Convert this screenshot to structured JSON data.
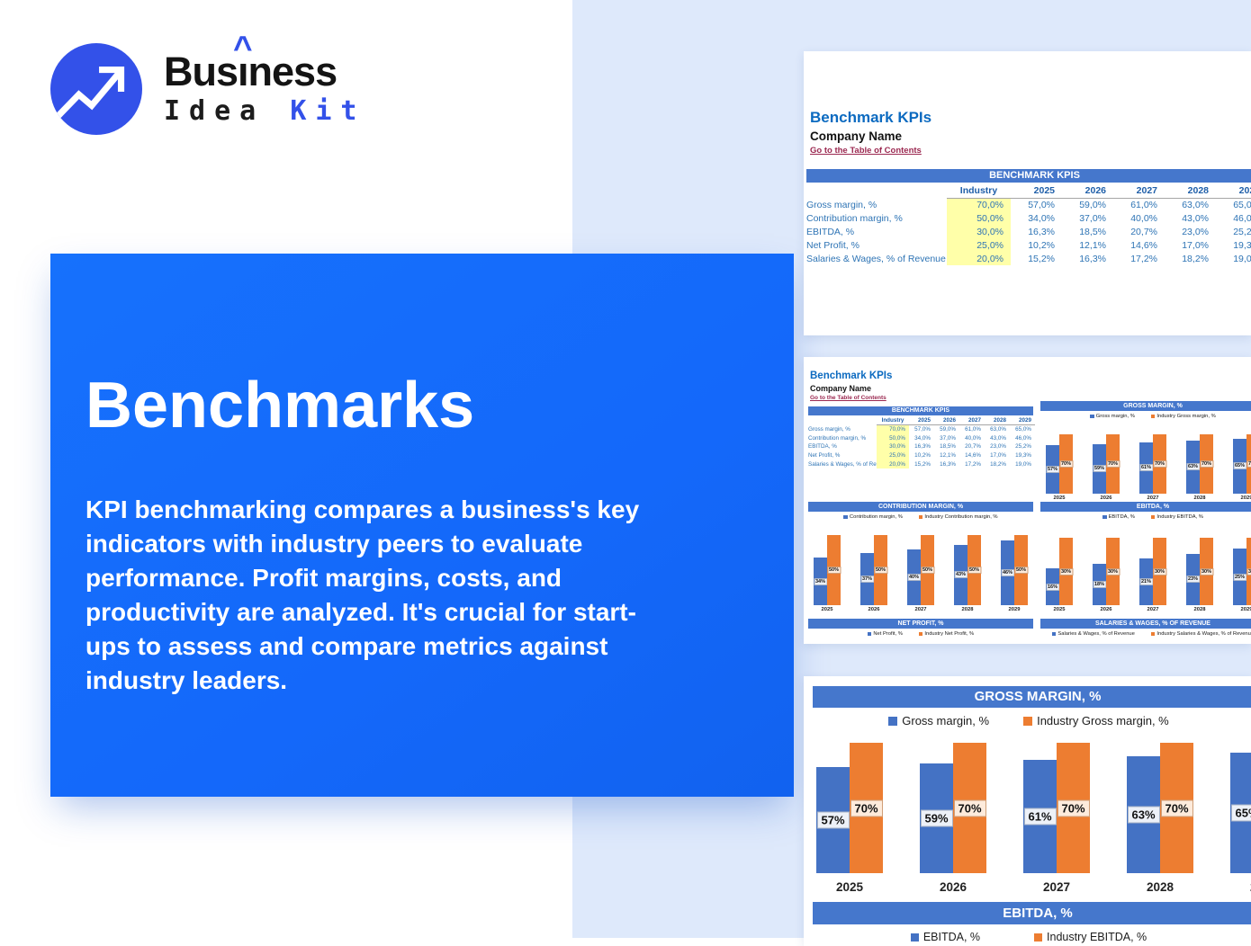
{
  "logo": {
    "line1_pre": "Bus",
    "line1_i": "ı",
    "line1_caret": "^",
    "line1_post": "ness",
    "line2_word1": "Idea",
    "line2_word2": "Kit"
  },
  "hero": {
    "title": "Benchmarks",
    "description": "KPI benchmarking compares a business's key indicators with industry peers to evaluate performance. Profit margins, costs, and productivity are analyzed. It's crucial for start-ups to assess and compare metrics against industry leaders."
  },
  "sheet": {
    "title": "Benchmark KPIs",
    "company": "Company Name",
    "toc_link": "Go to the Table of Contents",
    "table": {
      "title": "BENCHMARK KPIS",
      "industry_col": "Industry",
      "years": [
        "2025",
        "2026",
        "2027",
        "2028",
        "2029"
      ],
      "rows": [
        {
          "label": "Gross margin, %",
          "industry": "70,0%",
          "values": [
            "57,0%",
            "59,0%",
            "61,0%",
            "63,0%",
            "65,0%"
          ]
        },
        {
          "label": "Contribution margin, %",
          "industry": "50,0%",
          "values": [
            "34,0%",
            "37,0%",
            "40,0%",
            "43,0%",
            "46,0%"
          ]
        },
        {
          "label": "EBITDA, %",
          "industry": "30,0%",
          "values": [
            "16,3%",
            "18,5%",
            "20,7%",
            "23,0%",
            "25,2%"
          ]
        },
        {
          "label": "Net Profit, %",
          "industry": "25,0%",
          "values": [
            "10,2%",
            "12,1%",
            "14,6%",
            "17,0%",
            "19,3%"
          ]
        },
        {
          "label": "Salaries & Wages, % of Revenue",
          "industry": "20,0%",
          "values": [
            "15,2%",
            "16,3%",
            "17,2%",
            "18,2%",
            "19,0%"
          ]
        }
      ]
    }
  },
  "charts": {
    "gross_margin": {
      "type": "bar",
      "title": "GROSS MARGIN, %",
      "legend": [
        "Gross margin, %",
        "Industry Gross margin, %"
      ],
      "years": [
        "2025",
        "2026",
        "2027",
        "2028",
        "2029"
      ],
      "company": [
        57,
        59,
        61,
        63,
        65
      ],
      "company_labels": [
        "57%",
        "59%",
        "61%",
        "63%",
        "65%"
      ],
      "industry": [
        70,
        70,
        70,
        70,
        70
      ],
      "industry_labels": [
        "70%",
        "70%",
        "70%",
        "70%",
        "70%"
      ]
    },
    "contribution_margin": {
      "type": "bar",
      "title": "CONTRIBUTION MARGIN, %",
      "legend": [
        "Contribution margin, %",
        "Industry Contribution margin, %"
      ],
      "years": [
        "2025",
        "2026",
        "2027",
        "2028",
        "2029"
      ],
      "company": [
        34,
        37,
        40,
        43,
        46
      ],
      "company_labels": [
        "34%",
        "37%",
        "40%",
        "43%",
        "46%"
      ],
      "industry": [
        50,
        50,
        50,
        50,
        50
      ],
      "industry_labels": [
        "50%",
        "50%",
        "50%",
        "50%",
        "50%"
      ]
    },
    "ebitda": {
      "type": "bar",
      "title": "EBITDA, %",
      "legend": [
        "EBITDA, %",
        "Industry EBITDA, %"
      ],
      "years": [
        "2025",
        "2026",
        "2027",
        "2028",
        "2029"
      ],
      "company": [
        16.3,
        18.5,
        20.7,
        23,
        25.2
      ],
      "company_labels": [
        "16%",
        "18%",
        "21%",
        "23%",
        "25%"
      ],
      "industry": [
        30,
        30,
        30,
        30,
        30
      ],
      "industry_labels": [
        "30%",
        "30%",
        "30%",
        "30%",
        "30%"
      ]
    },
    "net_profit": {
      "title": "NET PROFIT, %",
      "legend": [
        "Net Profit, %",
        "Industry Net Profit, %"
      ]
    },
    "salaries_wages": {
      "title": "SALARIES & WAGES, % OF REVENUE",
      "legend": [
        "Salaries & Wages, % of Revenue",
        "Industry Salaries & Wages, % of Revenue"
      ]
    }
  },
  "colors": {
    "hero_blue": "#146bfb",
    "light_blue_bg": "#dee9fb",
    "logo_blue": "#3351e9",
    "table_header_blue": "#4577cc",
    "series_blue": "#4472c4",
    "series_orange": "#ed7d31",
    "highlight_yellow": "#ffffa9",
    "link_red": "#9b2850",
    "table_text_blue": "#2e74b5"
  }
}
